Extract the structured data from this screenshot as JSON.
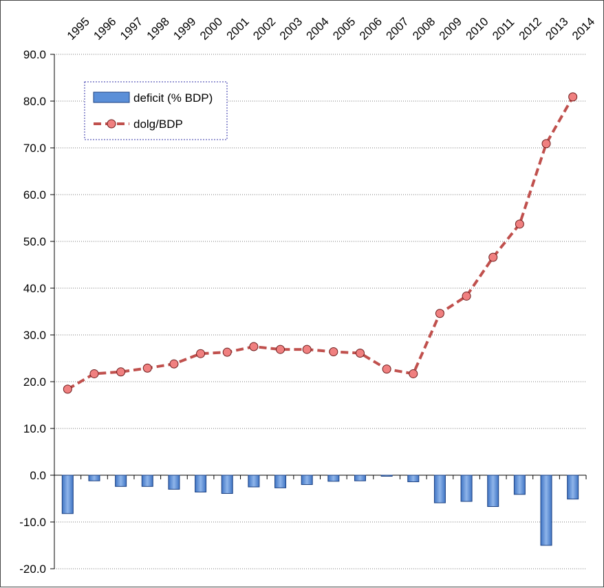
{
  "chart_data": {
    "type": "bar-line-combo",
    "categories": [
      "1995",
      "1996",
      "1997",
      "1998",
      "1999",
      "2000",
      "2001",
      "2002",
      "2003",
      "2004",
      "2005",
      "2006",
      "2007",
      "2008",
      "2009",
      "2010",
      "2011",
      "2012",
      "2013",
      "2014"
    ],
    "series": [
      {
        "name": "deficit (% BDP)",
        "type": "bar",
        "color": "#5b8fd8",
        "values": [
          -8.2,
          -1.2,
          -2.4,
          -2.4,
          -3.0,
          -3.6,
          -3.9,
          -2.5,
          -2.7,
          -2.0,
          -1.3,
          -1.2,
          -0.2,
          -1.4,
          -5.9,
          -5.6,
          -6.7,
          -4.1,
          -15.0,
          -5.1
        ]
      },
      {
        "name": "dolg/BDP",
        "type": "line",
        "color": "#c0504d",
        "marker_color": "#f08080",
        "values": [
          18.4,
          21.7,
          22.1,
          22.9,
          23.8,
          26.0,
          26.3,
          27.5,
          26.9,
          26.9,
          26.4,
          26.1,
          22.7,
          21.7,
          34.6,
          38.3,
          46.6,
          53.7,
          70.9,
          80.9
        ]
      }
    ],
    "yticks": [
      "90.0",
      "80.0",
      "70.0",
      "60.0",
      "50.0",
      "40.0",
      "30.0",
      "20.0",
      "10.0",
      "0.0",
      "-10.0",
      "-20.0"
    ],
    "ylim": [
      -20,
      90
    ],
    "grid": true,
    "legend_position": "top-left"
  }
}
